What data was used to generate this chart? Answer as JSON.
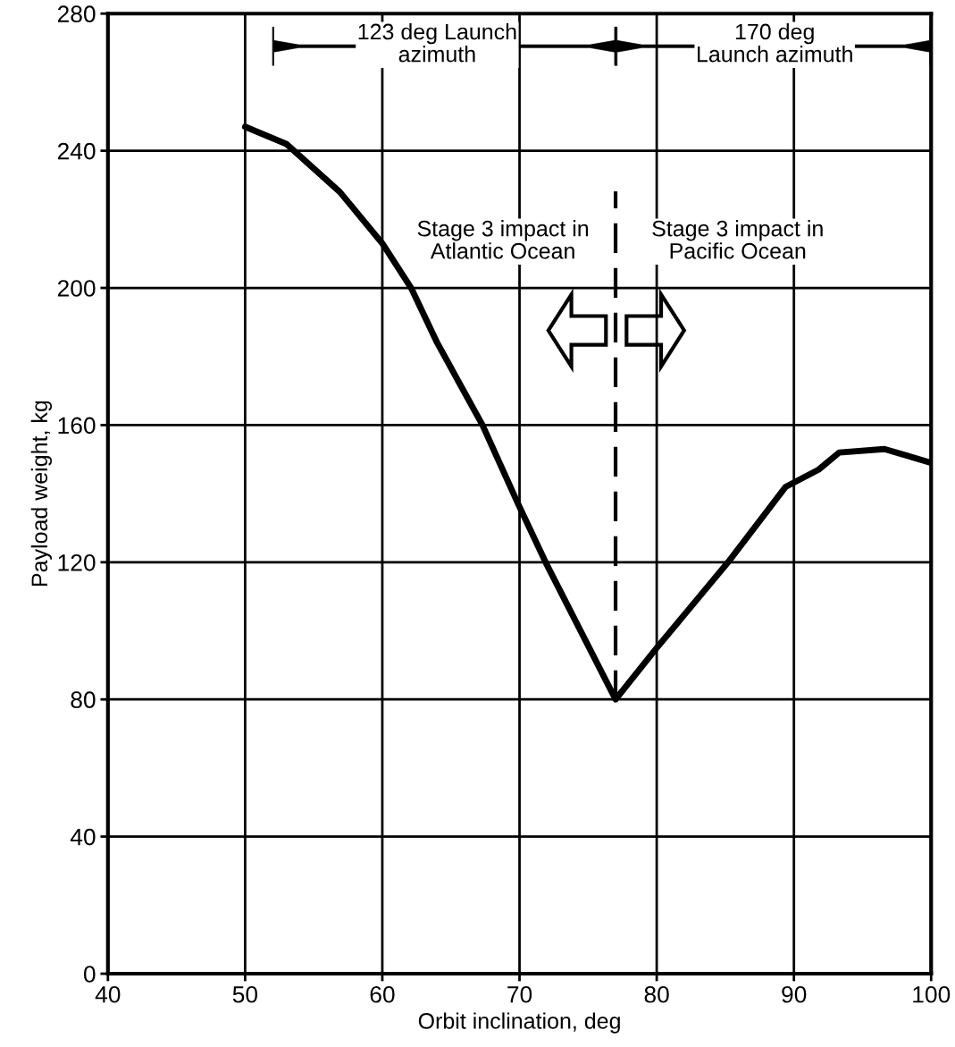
{
  "chart_data": {
    "type": "line",
    "xlabel": "Orbit inclination, deg",
    "ylabel": "Payload weight, kg",
    "x": [
      50,
      53,
      56.9,
      60,
      62.1,
      64,
      67.3,
      69.9,
      71.9,
      77,
      80,
      85.2,
      89.4,
      91.8,
      93.3,
      96.6,
      100
    ],
    "series": [
      {
        "color": "#000000",
        "values": [
          247,
          242,
          228,
          213,
          200,
          184,
          160,
          137,
          120,
          80,
          95,
          120,
          142,
          147,
          152,
          153,
          149
        ]
      }
    ],
    "xlim": [
      40,
      100
    ],
    "xticks": [
      40,
      50,
      60,
      70,
      80,
      90,
      100
    ],
    "ylim": [
      0,
      280
    ],
    "yticks": [
      0,
      40,
      80,
      120,
      160,
      200,
      240,
      280
    ],
    "grid": true,
    "marker": "none",
    "line_style": "solid",
    "ref_lines": [
      {
        "axis": "x",
        "value": 77,
        "color": "#000000",
        "line_style": "dashed"
      }
    ],
    "annotations": [
      "123 deg Launch\nazimuth",
      "170 deg\nLaunch azimuth",
      "Stage 3 impact in\nAtlantic Ocean",
      "Stage 3 impact in\nPacific Ocean"
    ]
  }
}
